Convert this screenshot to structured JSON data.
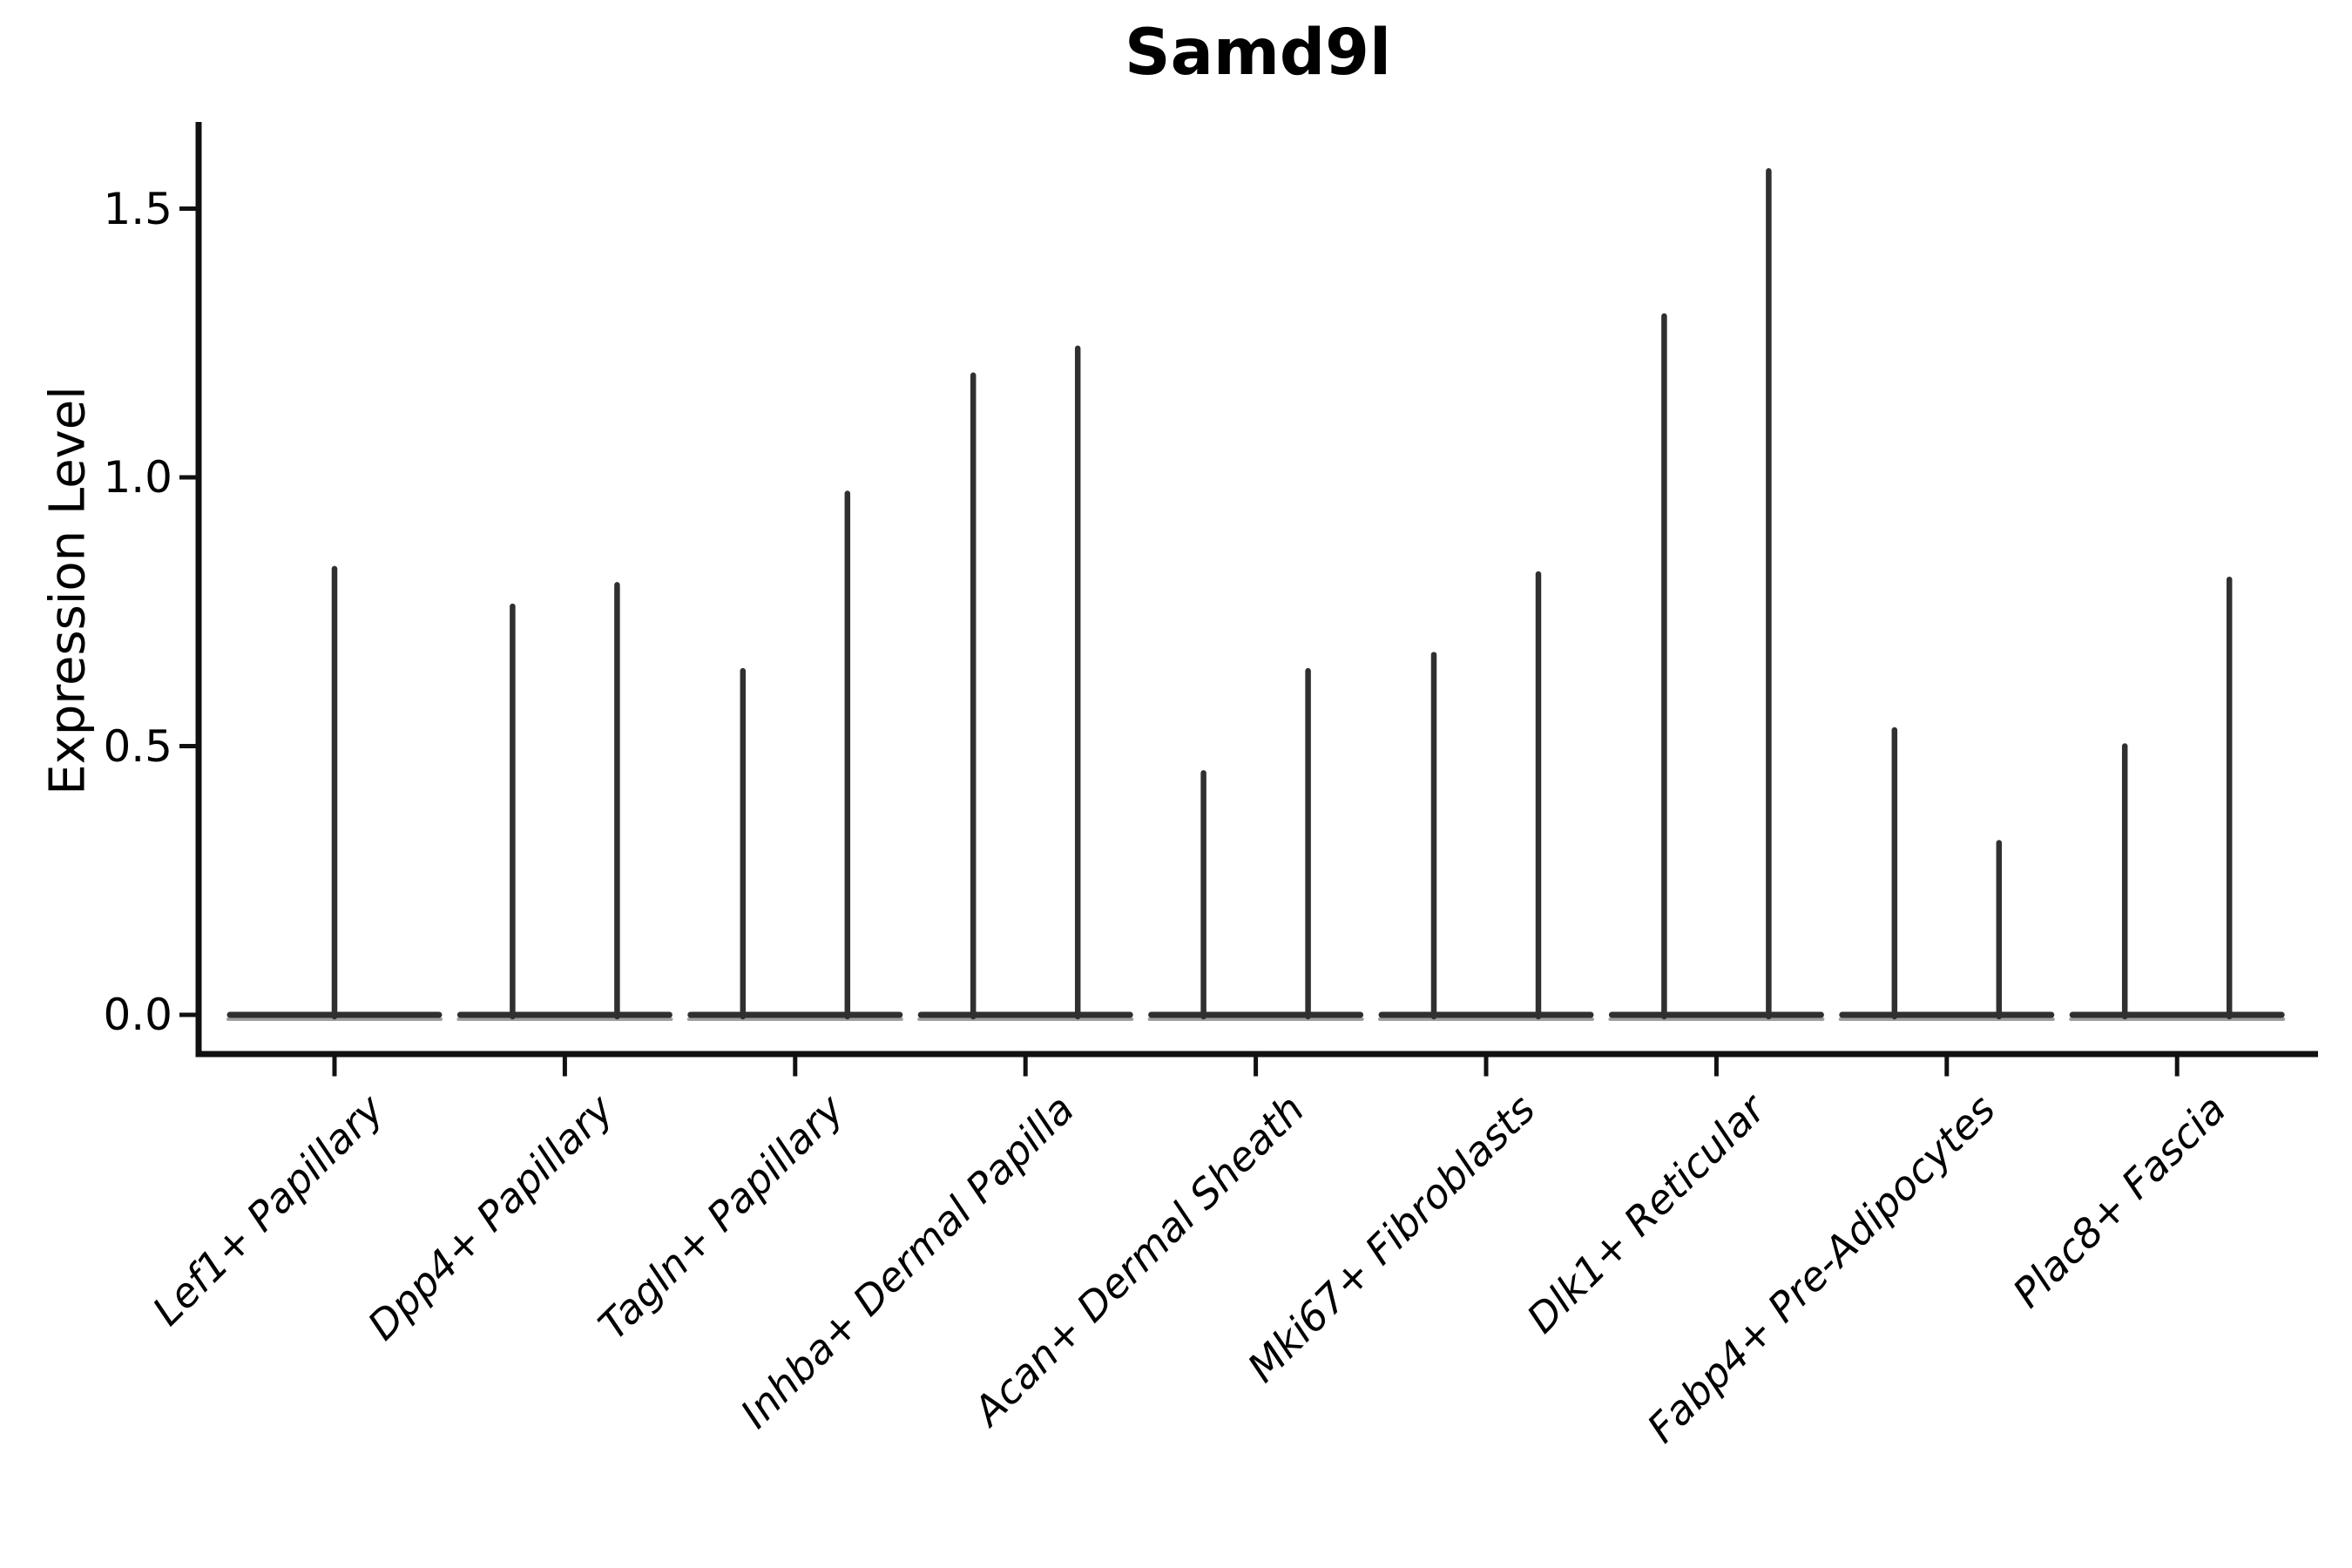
{
  "title": "Samd9l",
  "axes": {
    "y_label": "Expression Level"
  },
  "chart_data": {
    "type": "violin",
    "title": "Samd9l",
    "xlabel": "",
    "ylabel": "Expression Level",
    "ylim": [
      0,
      1.66
    ],
    "yticks": [
      0.0,
      0.5,
      1.0,
      1.5
    ],
    "y_tick_labels": [
      "0.0",
      "0.5",
      "1.0",
      "1.5"
    ],
    "grid": "off",
    "legend": "none",
    "note": "Each identity shows flat violin(s) at 0 with thin spikes up to the max expression value; first category has a single centered violin, all others have two side-by-side violins.",
    "categories": [
      "Lef1+ Papillary",
      "Dpp4+ Papillary",
      "Tagln+ Papillary",
      "Inhba+ Dermal Papilla",
      "Acan+ Dermal Sheath",
      "Mki67+ Fibroblasts",
      "Dlk1+ Reticular",
      "Fabp4+ Pre-Adipocytes",
      "Plac8+ Fascia"
    ],
    "violins": [
      {
        "label": "Lef1+ Papillary",
        "spike_maxima": [
          0.83
        ]
      },
      {
        "label": "Dpp4+ Papillary",
        "spike_maxima": [
          0.76,
          0.8
        ]
      },
      {
        "label": "Tagln+ Papillary",
        "spike_maxima": [
          0.64,
          0.97
        ]
      },
      {
        "label": "Inhba+ Dermal Papilla",
        "spike_maxima": [
          1.19,
          1.24
        ]
      },
      {
        "label": "Acan+ Dermal Sheath",
        "spike_maxima": [
          0.45,
          0.64
        ]
      },
      {
        "label": "Mki67+ Fibroblasts",
        "spike_maxima": [
          0.67,
          0.82
        ]
      },
      {
        "label": "Dlk1+ Reticular",
        "spike_maxima": [
          1.3,
          1.57
        ]
      },
      {
        "label": "Fabp4+ Pre-Adipocytes",
        "spike_maxima": [
          0.53,
          0.32
        ]
      },
      {
        "label": "Plac8+ Fascia",
        "spike_maxima": [
          0.5,
          0.81
        ]
      }
    ],
    "colors": {
      "violin_stroke": "#303030",
      "violin_base_shadow": "#9e9e9e",
      "axis": "#111111",
      "text": "#000000",
      "background": "#ffffff"
    }
  }
}
